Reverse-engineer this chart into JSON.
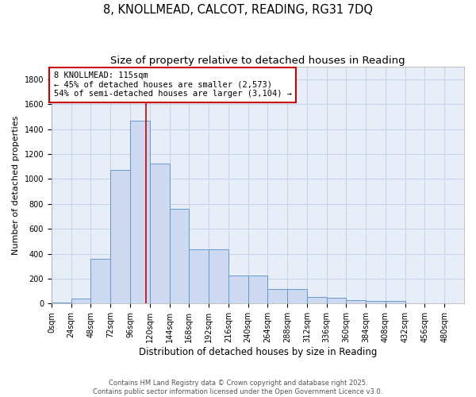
{
  "title1": "8, KNOLLMEAD, CALCOT, READING, RG31 7DQ",
  "title2": "Size of property relative to detached houses in Reading",
  "xlabel": "Distribution of detached houses by size in Reading",
  "ylabel": "Number of detached properties",
  "bar_values": [
    10,
    40,
    360,
    1070,
    1470,
    1125,
    760,
    435,
    435,
    225,
    225,
    115,
    115,
    55,
    50,
    30,
    20,
    20,
    5,
    5,
    0
  ],
  "bin_edges": [
    0,
    24,
    48,
    72,
    96,
    120,
    144,
    168,
    192,
    216,
    240,
    264,
    288,
    312,
    336,
    360,
    384,
    408,
    432,
    456,
    480,
    504
  ],
  "bar_color": "#ccd9f0",
  "bar_edge_color": "#6699cc",
  "grid_color": "#c8d4e8",
  "background_color": "#e8eef8",
  "vline_x": 115,
  "vline_color": "#cc0000",
  "annotation_line1": "8 KNOLLMEAD: 115sqm",
  "annotation_line2": "← 45% of detached houses are smaller (2,573)",
  "annotation_line3": "54% of semi-detached houses are larger (3,104) →",
  "annotation_box_color": "#cc0000",
  "ylim": [
    0,
    1900
  ],
  "yticks": [
    0,
    200,
    400,
    600,
    800,
    1000,
    1200,
    1400,
    1600,
    1800
  ],
  "footer_text": "Contains HM Land Registry data © Crown copyright and database right 2025.\nContains public sector information licensed under the Open Government Licence v3.0.",
  "title1_fontsize": 10.5,
  "title2_fontsize": 9.5,
  "xlabel_fontsize": 8.5,
  "ylabel_fontsize": 8,
  "tick_fontsize": 7,
  "footer_fontsize": 6,
  "annotation_fontsize": 7.5
}
